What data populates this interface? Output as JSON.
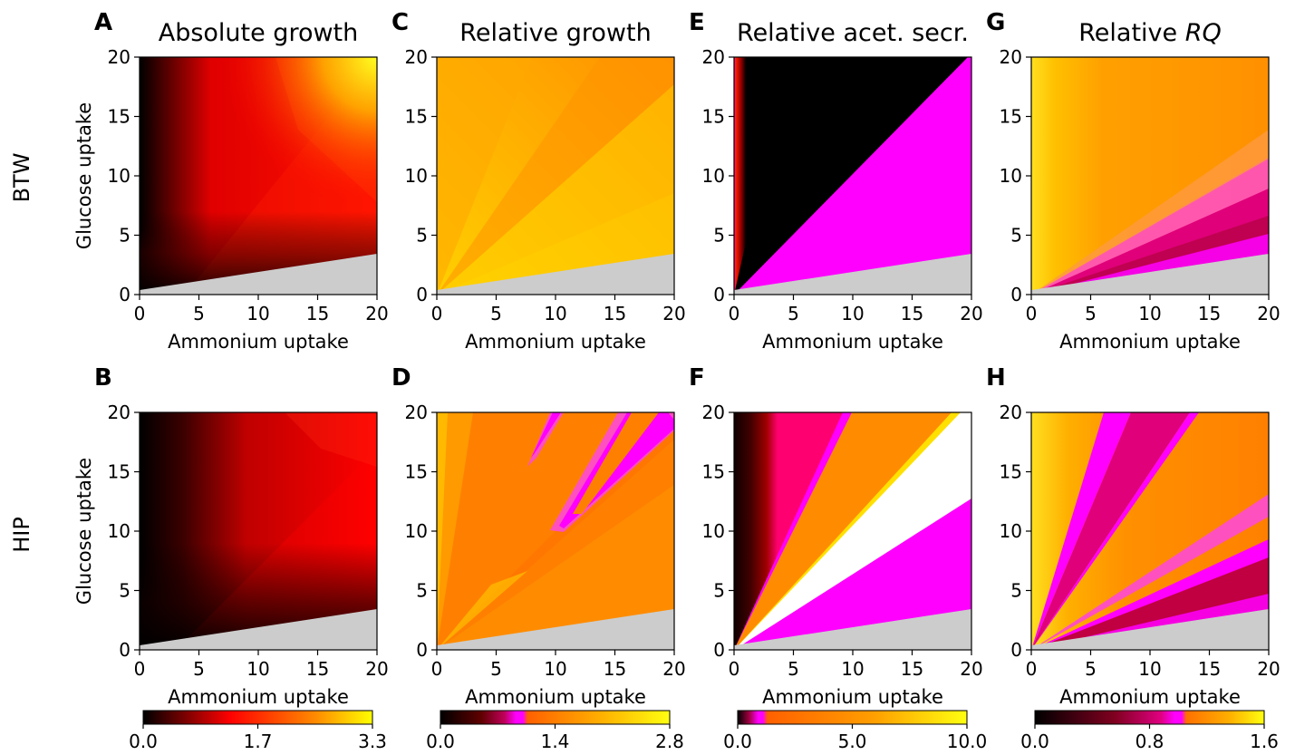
{
  "figure": {
    "row_labels": [
      "BTW",
      "HIP"
    ],
    "ylabel": "Glucose uptake",
    "xlabel": "Ammonium uptake"
  },
  "colors": {
    "infeasible": "#cccccc",
    "magenta": "#ff00ff",
    "white": "#ffffff"
  },
  "chart_data": [
    {
      "type": "heatmap",
      "panel": "A",
      "row": "BTW",
      "title": "Absolute growth",
      "xlabel": "Ammonium uptake",
      "ylabel": "Glucose uptake",
      "xlim": [
        0,
        20
      ],
      "ylim": [
        0,
        20
      ],
      "xticks": [
        0,
        5,
        10,
        15,
        20
      ],
      "yticks": [
        0,
        5,
        10,
        15,
        20
      ],
      "colorbar": null
    },
    {
      "type": "heatmap",
      "panel": "C",
      "row": "BTW",
      "title": "Relative growth",
      "xlabel": "Ammonium uptake",
      "ylabel": "",
      "xlim": [
        0,
        20
      ],
      "ylim": [
        0,
        20
      ],
      "xticks": [
        0,
        5,
        10,
        15,
        20
      ],
      "yticks": [
        0,
        5,
        10,
        15,
        20
      ],
      "colorbar": null
    },
    {
      "type": "heatmap",
      "panel": "E",
      "row": "BTW",
      "title": "Relative acet. secr.",
      "xlabel": "Ammonium uptake",
      "ylabel": "",
      "xlim": [
        0,
        20
      ],
      "ylim": [
        0,
        20
      ],
      "xticks": [
        0,
        5,
        10,
        15,
        20
      ],
      "yticks": [
        0,
        5,
        10,
        15,
        20
      ],
      "colorbar": null
    },
    {
      "type": "heatmap",
      "panel": "G",
      "row": "BTW",
      "title": "Relative RQ",
      "title_plain": "Relative ",
      "title_italic": "RQ",
      "xlabel": "Ammonium uptake",
      "ylabel": "",
      "xlim": [
        0,
        20
      ],
      "ylim": [
        0,
        20
      ],
      "xticks": [
        0,
        5,
        10,
        15,
        20
      ],
      "yticks": [
        0,
        5,
        10,
        15,
        20
      ],
      "colorbar": null
    },
    {
      "type": "heatmap",
      "panel": "B",
      "row": "HIP",
      "title": "",
      "xlabel": "Ammonium uptake",
      "ylabel": "Glucose uptake",
      "xlim": [
        0,
        20
      ],
      "ylim": [
        0,
        20
      ],
      "xticks": [
        0,
        5,
        10,
        15,
        20
      ],
      "yticks": [
        0,
        5,
        10,
        15,
        20
      ],
      "colorbar": {
        "ticks": [
          "0.0",
          "1.7",
          "3.3"
        ],
        "range": [
          0,
          3.3
        ],
        "scale": "hot"
      }
    },
    {
      "type": "heatmap",
      "panel": "D",
      "row": "HIP",
      "title": "",
      "xlabel": "Ammonium uptake",
      "ylabel": "",
      "xlim": [
        0,
        20
      ],
      "ylim": [
        0,
        20
      ],
      "xticks": [
        0,
        5,
        10,
        15,
        20
      ],
      "yticks": [
        0,
        5,
        10,
        15,
        20
      ],
      "colorbar": {
        "ticks": [
          "0.0",
          "1.4",
          "2.8"
        ],
        "range": [
          0,
          2.8
        ],
        "scale": "diverging-hot-magenta",
        "center": 1.0
      }
    },
    {
      "type": "heatmap",
      "panel": "F",
      "row": "HIP",
      "title": "",
      "xlabel": "Ammonium uptake",
      "ylabel": "",
      "xlim": [
        0,
        20
      ],
      "ylim": [
        0,
        20
      ],
      "xticks": [
        0,
        5,
        10,
        15,
        20
      ],
      "yticks": [
        0,
        5,
        10,
        15,
        20
      ],
      "colorbar": {
        "ticks": [
          "0.0",
          "5.0",
          "10.0"
        ],
        "range": [
          0,
          10
        ],
        "scale": "diverging-hot-magenta",
        "center": 1.0
      }
    },
    {
      "type": "heatmap",
      "panel": "H",
      "row": "HIP",
      "title": "",
      "xlabel": "Ammonium uptake",
      "ylabel": "",
      "xlim": [
        0,
        20
      ],
      "ylim": [
        0,
        20
      ],
      "xticks": [
        0,
        5,
        10,
        15,
        20
      ],
      "yticks": [
        0,
        5,
        10,
        15,
        20
      ],
      "colorbar": {
        "ticks": [
          "0.0",
          "0.8",
          "1.6"
        ],
        "range": [
          0,
          1.6
        ],
        "scale": "diverging-hot-magenta",
        "center": 1.0
      }
    }
  ]
}
